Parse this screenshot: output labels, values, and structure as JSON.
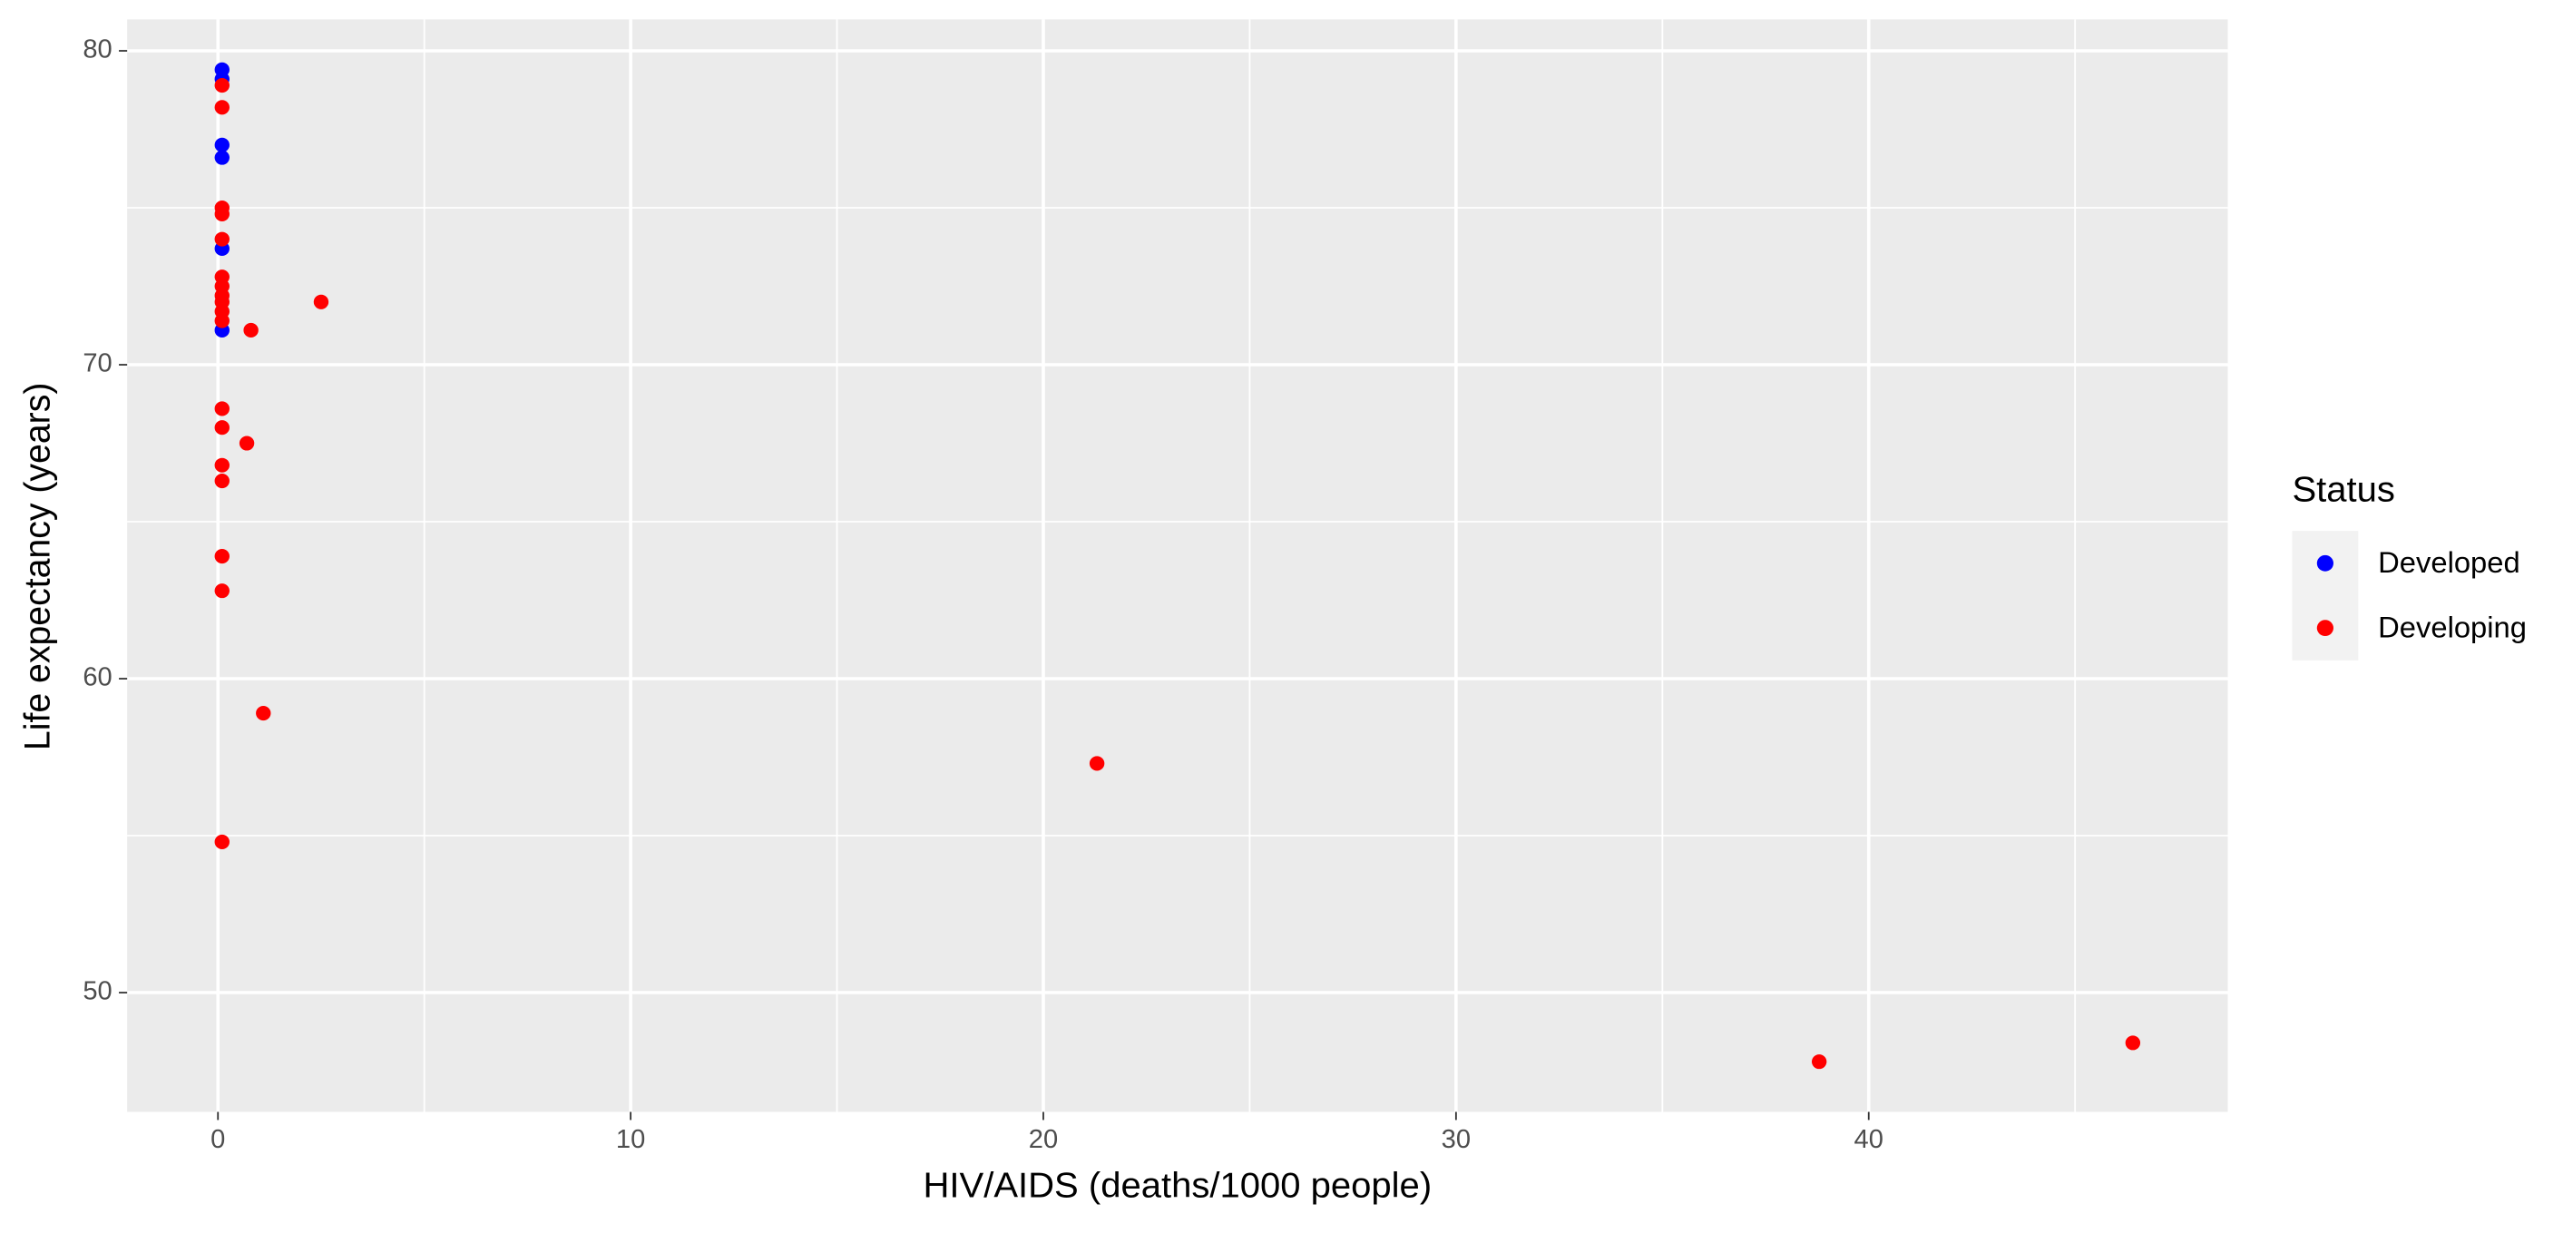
{
  "chart_data": {
    "type": "scatter",
    "x_label": "HIV/AIDS (deaths/1000 people)",
    "y_label": "Life expectancy (years)",
    "legend_title": "Status",
    "legend_position": "right",
    "grid": true,
    "xlim": [
      -2.2,
      48.7
    ],
    "xticks": [
      0,
      10,
      20,
      30,
      40
    ],
    "ylim": [
      46.2,
      81.0
    ],
    "yticks": [
      50,
      60,
      70,
      80
    ],
    "series": [
      {
        "name": "Developed",
        "color": "#0000ff",
        "x": [
          0.1,
          0.1,
          0.1,
          0.1,
          0.1,
          0.1
        ],
        "y": [
          79.4,
          79.1,
          77.0,
          76.6,
          73.7,
          71.1
        ]
      },
      {
        "name": "Developing",
        "color": "#ff0000",
        "x": [
          0.1,
          0.1,
          0.1,
          0.1,
          0.1,
          0.1,
          0.1,
          0.1,
          0.1,
          0.1,
          0.1,
          2.5,
          0.8,
          0.1,
          0.1,
          0.7,
          0.1,
          0.1,
          0.1,
          0.1,
          1.1,
          0.1,
          21.3,
          38.8,
          46.4
        ],
        "y": [
          78.9,
          78.2,
          75.0,
          74.8,
          74.0,
          72.8,
          72.5,
          72.2,
          72.0,
          71.7,
          71.4,
          72.0,
          71.1,
          68.6,
          68.0,
          67.5,
          66.8,
          66.3,
          63.9,
          62.8,
          58.9,
          54.8,
          57.3,
          47.8,
          48.4
        ]
      }
    ]
  }
}
